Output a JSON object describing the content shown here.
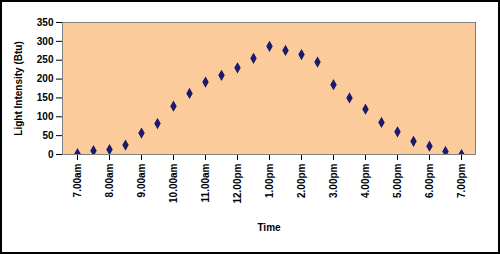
{
  "chart_data": {
    "type": "scatter",
    "x_label": "Time",
    "y_label": "Light Intensity (Btu)",
    "categories": [
      "7.00am",
      null,
      "8.00am",
      null,
      "9.00am",
      null,
      "10.00am",
      null,
      "11.00am",
      null,
      "12.00pm",
      null,
      "1.00pm",
      null,
      "2.00pm",
      null,
      "3.00pm",
      null,
      "4.00pm",
      null,
      "5.00pm",
      null,
      "6.00pm",
      null,
      "7.00pm"
    ],
    "values": [
      2,
      10,
      13,
      25,
      57,
      82,
      128,
      162,
      192,
      210,
      230,
      255,
      287,
      276,
      265,
      245,
      185,
      150,
      120,
      85,
      60,
      35,
      22,
      8,
      0
    ],
    "color": "#1a1a6e",
    "marker": "diamond",
    "ylim": [
      0,
      350
    ],
    "yticks": [
      0,
      50,
      100,
      150,
      200,
      250,
      300,
      350
    ],
    "grid": false
  }
}
